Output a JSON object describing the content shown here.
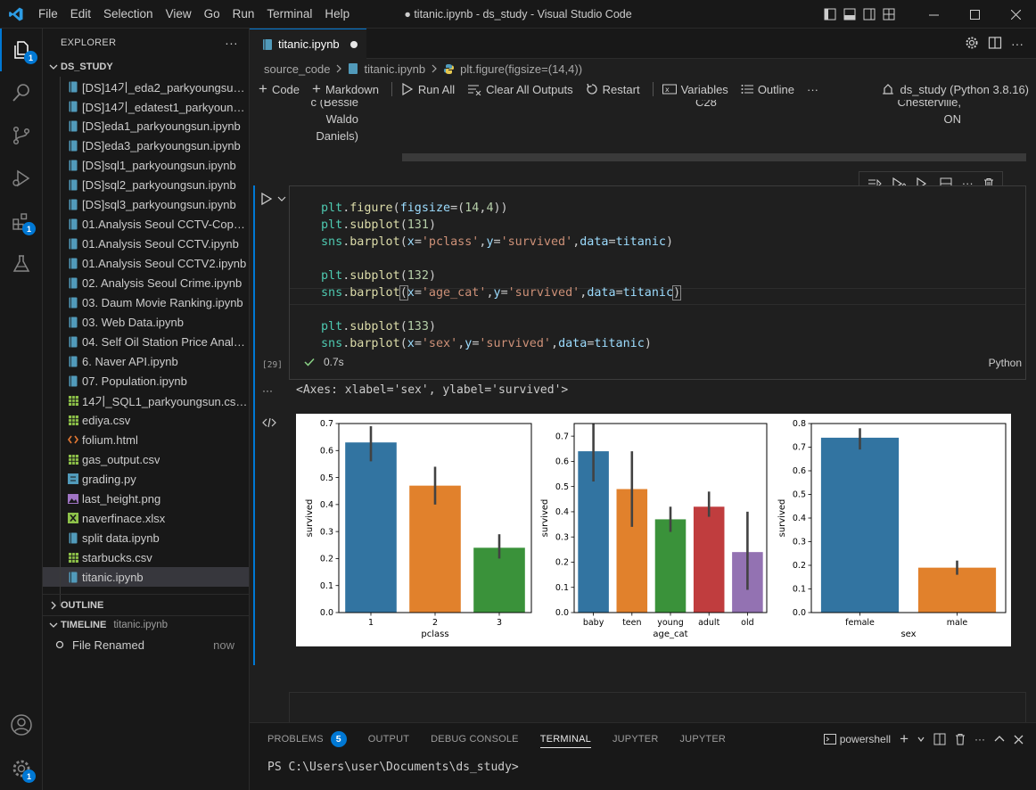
{
  "window": {
    "title": "● titanic.ipynb - ds_study - Visual Studio Code",
    "menu": [
      "File",
      "Edit",
      "Selection",
      "View",
      "Go",
      "Run",
      "Terminal",
      "Help"
    ]
  },
  "activity": {
    "explorer_badge": "1",
    "accounts_badge": "",
    "settings_badge": "1",
    "extensions_badge": "1"
  },
  "sidebar": {
    "title": "EXPLORER",
    "more": "···",
    "folder": "DS_STUDY",
    "files": [
      {
        "name": "[DS]14기_eda2_parkyoungsun.i...",
        "icon": "notebook"
      },
      {
        "name": "[DS]14기_edatest1_parkyoungs...",
        "icon": "notebook"
      },
      {
        "name": "[DS]eda1_parkyoungsun.ipynb",
        "icon": "notebook"
      },
      {
        "name": "[DS]eda3_parkyoungsun.ipynb",
        "icon": "notebook"
      },
      {
        "name": "[DS]sql1_parkyoungsun.ipynb",
        "icon": "notebook"
      },
      {
        "name": "[DS]sql2_parkyoungsun.ipynb",
        "icon": "notebook"
      },
      {
        "name": "[DS]sql3_parkyoungsun.ipynb",
        "icon": "notebook"
      },
      {
        "name": "01.Analysis Seoul CCTV-Copy1....",
        "icon": "notebook"
      },
      {
        "name": "01.Analysis Seoul CCTV.ipynb",
        "icon": "notebook"
      },
      {
        "name": "01.Analysis Seoul CCTV2.ipynb",
        "icon": "notebook"
      },
      {
        "name": "02. Analysis Seoul Crime.ipynb",
        "icon": "notebook"
      },
      {
        "name": "03. Daum Movie Ranking.ipynb",
        "icon": "notebook"
      },
      {
        "name": "03. Web Data.ipynb",
        "icon": "notebook"
      },
      {
        "name": "04. Self Oil Station Price Analys...",
        "icon": "notebook"
      },
      {
        "name": "6. Naver API.ipynb",
        "icon": "notebook"
      },
      {
        "name": "07. Population.ipynb",
        "icon": "notebook"
      },
      {
        "name": "14기_SQL1_parkyoungsun.csv.c...",
        "icon": "csv"
      },
      {
        "name": "ediya.csv",
        "icon": "csv"
      },
      {
        "name": "folium.html",
        "icon": "html"
      },
      {
        "name": "gas_output.csv",
        "icon": "csv"
      },
      {
        "name": "grading.py",
        "icon": "python"
      },
      {
        "name": "last_height.png",
        "icon": "image"
      },
      {
        "name": "naverfinace.xlsx",
        "icon": "excel"
      },
      {
        "name": "split data.ipynb",
        "icon": "notebook"
      },
      {
        "name": "starbucks.csv",
        "icon": "csv"
      },
      {
        "name": "titanic.ipynb",
        "icon": "notebook",
        "selected": true
      }
    ],
    "outline_label": "OUTLINE",
    "timeline_label": "TIMELINE",
    "timeline_file": "titanic.ipynb",
    "timeline_items": [
      {
        "label": "File Renamed",
        "time": "now"
      }
    ]
  },
  "editor": {
    "tab_label": "titanic.ipynb",
    "breadcrumb": [
      "source_code",
      "titanic.ipynb",
      "plt.figure(figsize=(14,4))"
    ],
    "toolbar": {
      "code": "Code",
      "markdown": "Markdown",
      "run_all": "Run All",
      "clear_outputs": "Clear All Outputs",
      "restart": "Restart",
      "variables": "Variables",
      "outline": "Outline",
      "more": "···",
      "kernel": "ds_study (Python 3.8.16)"
    },
    "prev_output": {
      "col1": [
        "c (Bessie",
        "Waldo",
        "Daniels)"
      ],
      "col2": "C28",
      "col3": [
        "Chesterville,",
        "ON"
      ]
    },
    "cell": {
      "exec_count": "[29]",
      "status_time": "0.7s",
      "language": "Python",
      "output_text": "<Axes: xlabel='sex', ylabel='survived'>"
    }
  },
  "panel": {
    "tabs": [
      "PROBLEMS",
      "OUTPUT",
      "DEBUG CONSOLE",
      "TERMINAL",
      "JUPYTER",
      "JUPYTER"
    ],
    "problems_count": "5",
    "active_tab": "TERMINAL",
    "shell": "powershell",
    "prompt": "PS C:\\Users\\user\\Documents\\ds_study>"
  },
  "chart_data": [
    {
      "type": "bar",
      "categories": [
        "1",
        "2",
        "3"
      ],
      "values": [
        0.63,
        0.47,
        0.24
      ],
      "errors": [
        [
          0.56,
          0.69
        ],
        [
          0.4,
          0.54
        ],
        [
          0.2,
          0.29
        ]
      ],
      "colors": [
        "#3274a1",
        "#e1812c",
        "#3a923a"
      ],
      "xlabel": "pclass",
      "ylabel": "survived",
      "ylim": [
        0,
        0.7
      ],
      "yticks": [
        "0.0",
        "0.1",
        "0.2",
        "0.3",
        "0.4",
        "0.5",
        "0.6",
        "0.7"
      ]
    },
    {
      "type": "bar",
      "categories": [
        "baby",
        "teen",
        "young",
        "adult",
        "old"
      ],
      "values": [
        0.64,
        0.49,
        0.37,
        0.42,
        0.24
      ],
      "errors": [
        [
          0.52,
          0.75
        ],
        [
          0.34,
          0.64
        ],
        [
          0.32,
          0.42
        ],
        [
          0.38,
          0.48
        ],
        [
          0.09,
          0.4
        ]
      ],
      "colors": [
        "#3274a1",
        "#e1812c",
        "#3a923a",
        "#c03d3e",
        "#9372b2"
      ],
      "xlabel": "age_cat",
      "ylabel": "survived",
      "ylim": [
        0,
        0.75
      ],
      "yticks": [
        "0.0",
        "0.1",
        "0.2",
        "0.3",
        "0.4",
        "0.5",
        "0.6",
        "0.7"
      ]
    },
    {
      "type": "bar",
      "categories": [
        "female",
        "male"
      ],
      "values": [
        0.74,
        0.19
      ],
      "errors": [
        [
          0.69,
          0.78
        ],
        [
          0.16,
          0.22
        ]
      ],
      "colors": [
        "#3274a1",
        "#e1812c"
      ],
      "xlabel": "sex",
      "ylabel": "survived",
      "ylim": [
        0,
        0.8
      ],
      "yticks": [
        "0.0",
        "0.1",
        "0.2",
        "0.3",
        "0.4",
        "0.5",
        "0.6",
        "0.7",
        "0.8"
      ]
    }
  ]
}
